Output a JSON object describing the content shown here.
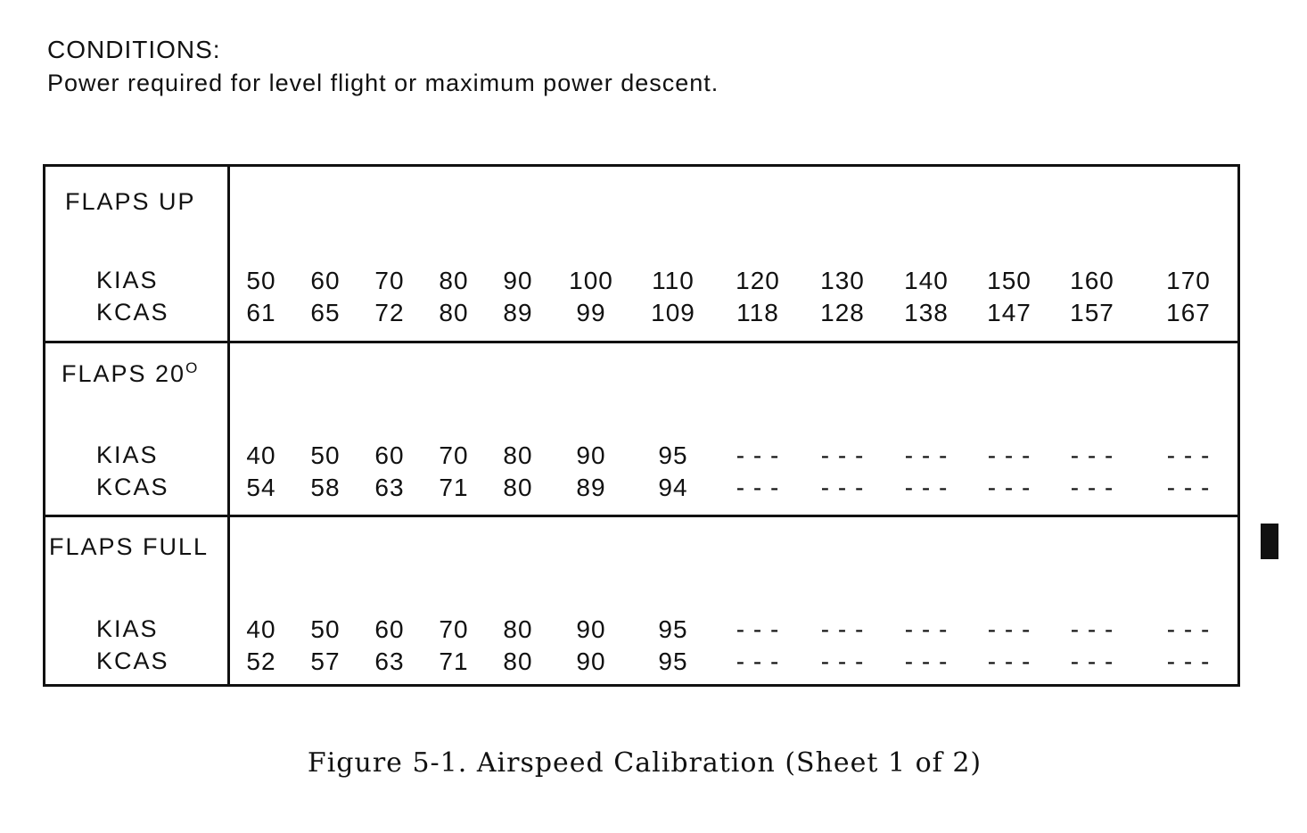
{
  "conditions": {
    "heading": "CONDITIONS:",
    "text": "Power required for level flight or maximum power descent."
  },
  "sections": [
    {
      "title": "FLAPS UP",
      "title_sup": "",
      "rows": [
        {
          "label": "KIAS",
          "values": [
            "50",
            "60",
            "70",
            "80",
            "90",
            "100",
            "110",
            "120",
            "130",
            "140",
            "150",
            "160",
            "170"
          ]
        },
        {
          "label": "KCAS",
          "values": [
            "61",
            "65",
            "72",
            "80",
            "89",
            "99",
            "109",
            "118",
            "128",
            "138",
            "147",
            "157",
            "167"
          ]
        }
      ]
    },
    {
      "title": "FLAPS 20",
      "title_sup": "O",
      "rows": [
        {
          "label": "KIAS",
          "values": [
            "40",
            "50",
            "60",
            "70",
            "80",
            "90",
            "95",
            "- - -",
            "- - -",
            "- - -",
            "- - -",
            "- - -",
            "- - -"
          ]
        },
        {
          "label": "KCAS",
          "values": [
            "54",
            "58",
            "63",
            "71",
            "80",
            "89",
            "94",
            "- - -",
            "- - -",
            "- - -",
            "- - -",
            "- - -",
            "- - -"
          ]
        }
      ]
    },
    {
      "title": "FLAPS FULL",
      "title_sup": "",
      "rows": [
        {
          "label": "KIAS",
          "values": [
            "40",
            "50",
            "60",
            "70",
            "80",
            "90",
            "95",
            "- - -",
            "- - -",
            "- - -",
            "- - -",
            "- - -",
            "- - -"
          ]
        },
        {
          "label": "KCAS",
          "values": [
            "52",
            "57",
            "63",
            "71",
            "80",
            "90",
            "95",
            "- - -",
            "- - -",
            "- - -",
            "- - -",
            "- - -",
            "- - -"
          ]
        }
      ]
    }
  ],
  "caption": "Figure 5-1. Airspeed Calibration (Sheet 1 of 2)"
}
